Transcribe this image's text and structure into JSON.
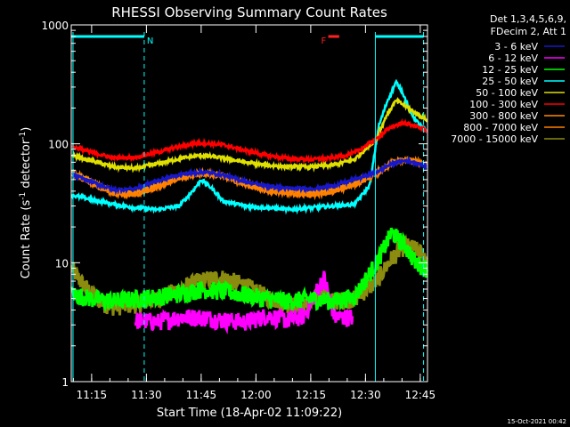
{
  "chart_data": {
    "type": "line",
    "title": "RHESSI Observing Summary Count Rates",
    "xlabel": "Start Time (18-Apr-02 11:09:22)",
    "ylabel": "Count Rate (s^-1 detector^-1)",
    "ylabel_parts": {
      "base": "Count Rate (s",
      "sup": "-1",
      "mid": " detector",
      "end": ")"
    },
    "yscale": "log",
    "ylim": [
      1,
      1000
    ],
    "xlim": [
      11.157,
      12.783
    ],
    "x_ticks": [
      {
        "value": 11.25,
        "label": "11:15"
      },
      {
        "value": 11.5,
        "label": "11:30"
      },
      {
        "value": 11.75,
        "label": "11:45"
      },
      {
        "value": 12.0,
        "label": "12:00"
      },
      {
        "value": 12.25,
        "label": "12:15"
      },
      {
        "value": 12.5,
        "label": "12:30"
      },
      {
        "value": 12.75,
        "label": "12:45"
      }
    ],
    "y_ticks": [
      {
        "value": 1,
        "label": "1"
      },
      {
        "value": 10,
        "label": "10"
      },
      {
        "value": 100,
        "label": "100"
      },
      {
        "value": 1000,
        "label": "1000"
      }
    ],
    "legend_header": [
      "Det 1,3,4,5,6,9,",
      "FDecim 2, Att 1"
    ],
    "legend_position": "right",
    "footer_date": "15-Oct-2021 00:42",
    "flags": [
      {
        "label": "N",
        "x_start": 11.157,
        "x_end": 11.49,
        "color": "#00ffff"
      },
      {
        "label": "F",
        "x_start": 12.33,
        "x_end": 12.38,
        "color": "#ff2020"
      },
      {
        "label": "",
        "x_start": 12.545,
        "x_end": 12.765,
        "color": "#00ffff"
      }
    ],
    "vlines": [
      {
        "x": 11.165,
        "style": "solid",
        "color": "#00ffff"
      },
      {
        "x": 11.49,
        "style": "dashed",
        "color": "#00ffff"
      },
      {
        "x": 12.545,
        "style": "solid",
        "color": "#00ffff"
      },
      {
        "x": 12.765,
        "style": "dashed",
        "color": "#00ffff"
      }
    ],
    "series": [
      {
        "name": "3 - 6 keV",
        "color": "#1818c8",
        "x": [
          11.16,
          11.25,
          11.35,
          11.45,
          11.55,
          11.65,
          11.75,
          11.85,
          11.95,
          12.05,
          12.15,
          12.25,
          12.35,
          12.45,
          12.55,
          12.62,
          12.68,
          12.73,
          12.78
        ],
        "y": [
          55,
          48,
          41,
          42,
          49,
          55,
          58,
          55,
          48,
          44,
          42,
          42,
          44,
          50,
          58,
          68,
          72,
          70,
          64
        ]
      },
      {
        "name": "6 - 12 keV",
        "color": "#ff00ff",
        "x": [
          11.45,
          11.55,
          11.65,
          11.75,
          11.85,
          11.95,
          12.05,
          12.15,
          12.22,
          12.27,
          12.31,
          12.36,
          12.42,
          12.44
        ],
        "y": [
          3.3,
          3.2,
          3.5,
          3.5,
          3.3,
          3.2,
          3.6,
          3.3,
          3.6,
          5.5,
          7.5,
          3.5,
          3.5,
          3.5
        ]
      },
      {
        "name": "12 - 25 keV",
        "color": "#00ff00",
        "x": [
          11.16,
          11.25,
          11.35,
          11.45,
          11.55,
          11.65,
          11.75,
          11.85,
          11.95,
          12.05,
          12.15,
          12.25,
          12.35,
          12.45,
          12.55,
          12.62,
          12.68,
          12.73,
          12.78
        ],
        "y": [
          5.5,
          5.0,
          4.8,
          5.0,
          5.2,
          5.5,
          6.0,
          5.8,
          5.4,
          5.0,
          4.8,
          5.0,
          4.8,
          5.2,
          10,
          18,
          14,
          10,
          9
        ]
      },
      {
        "name": "25 - 50 keV",
        "color": "#00ffff",
        "x": [
          11.16,
          11.25,
          11.35,
          11.45,
          11.55,
          11.65,
          11.72,
          11.75,
          11.8,
          11.85,
          11.95,
          12.05,
          12.15,
          12.25,
          12.35,
          12.45,
          12.52,
          12.56,
          12.6,
          12.64,
          12.67,
          12.7,
          12.74,
          12.78
        ],
        "y": [
          37,
          34,
          31,
          29,
          28,
          30,
          42,
          50,
          42,
          33,
          30,
          29,
          28,
          29,
          30,
          31,
          45,
          140,
          230,
          330,
          270,
          190,
          150,
          125
        ]
      },
      {
        "name": "50 - 100 keV",
        "color": "#e0e000",
        "x": [
          11.16,
          11.25,
          11.35,
          11.45,
          11.55,
          11.65,
          11.75,
          11.85,
          11.95,
          12.05,
          12.15,
          12.25,
          12.35,
          12.45,
          12.55,
          12.6,
          12.64,
          12.68,
          12.73,
          12.78
        ],
        "y": [
          80,
          72,
          64,
          62,
          68,
          75,
          80,
          76,
          70,
          66,
          64,
          64,
          66,
          74,
          110,
          180,
          230,
          210,
          180,
          160
        ]
      },
      {
        "name": "100 - 300 keV",
        "color": "#ff0000",
        "x": [
          11.16,
          11.25,
          11.35,
          11.45,
          11.55,
          11.65,
          11.75,
          11.85,
          11.95,
          12.05,
          12.15,
          12.25,
          12.35,
          12.45,
          12.55,
          12.62,
          12.68,
          12.73,
          12.78
        ],
        "y": [
          95,
          85,
          76,
          77,
          85,
          95,
          102,
          98,
          88,
          80,
          75,
          74,
          76,
          84,
          110,
          140,
          150,
          140,
          130
        ]
      },
      {
        "name": "300 - 800 keV",
        "color": "#ff8c00",
        "x": [
          11.16,
          11.25,
          11.35,
          11.45,
          11.55,
          11.65,
          11.75,
          11.85,
          11.95,
          12.05,
          12.15,
          12.25,
          12.35,
          12.45,
          12.55,
          12.62,
          12.68,
          12.73,
          12.78
        ],
        "y": [
          58,
          49,
          40,
          39,
          45,
          53,
          58,
          55,
          47,
          42,
          40,
          39,
          41,
          47,
          58,
          70,
          74,
          72,
          66
        ]
      },
      {
        "name": "800 - 7000 keV",
        "color": "#ff8000",
        "x": [
          11.16,
          11.25,
          11.35,
          11.45,
          11.55,
          11.65,
          11.75,
          11.85,
          11.95,
          12.05,
          12.15,
          12.25,
          12.35,
          12.45,
          12.55,
          12.62,
          12.68,
          12.73,
          12.78
        ],
        "y": [
          56,
          46,
          38,
          37,
          43,
          51,
          56,
          53,
          45,
          40,
          38,
          37,
          39,
          45,
          55,
          68,
          73,
          71,
          65
        ]
      },
      {
        "name": "7000 - 15000 keV",
        "color": "#8b8b10",
        "x": [
          11.16,
          11.2,
          11.25,
          11.3,
          11.35,
          11.45,
          11.55,
          11.65,
          11.75,
          11.85,
          11.95,
          12.05,
          12.15,
          12.2,
          12.25,
          12.3,
          12.35,
          12.45,
          12.55,
          12.62,
          12.68,
          12.73,
          12.78
        ],
        "y": [
          9,
          7,
          5.5,
          4.6,
          4.3,
          4.5,
          5,
          6,
          7.2,
          7.5,
          6.5,
          5.2,
          4.5,
          4.3,
          4.5,
          6,
          4.8,
          5,
          7,
          11,
          14,
          13,
          11
        ]
      }
    ]
  }
}
